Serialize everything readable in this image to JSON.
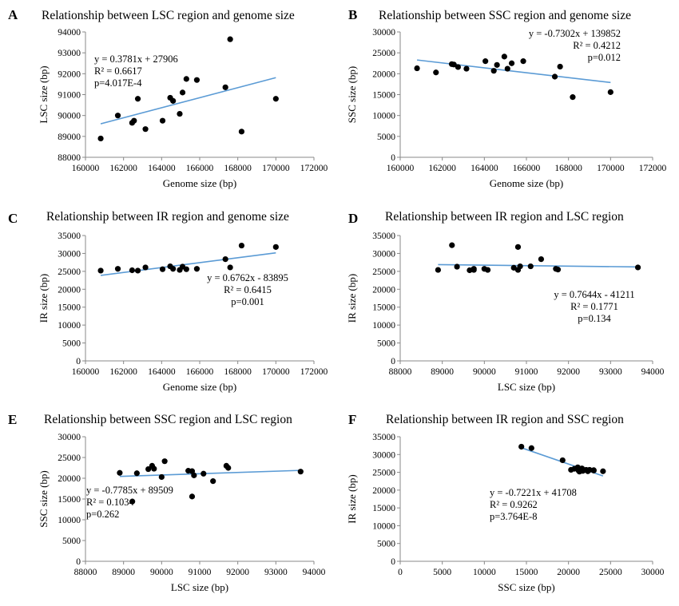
{
  "chart_data": [
    {
      "panel": "A",
      "type": "scatter",
      "title": "Relationship between LSC region and genome size",
      "xlabel": "Genome size (bp)",
      "ylabel": "LSC size (bp)",
      "xlim": [
        160000,
        172000
      ],
      "xticks": [
        160000,
        162000,
        164000,
        166000,
        168000,
        170000,
        172000
      ],
      "ylim": [
        88000,
        94000
      ],
      "yticks": [
        88000,
        89000,
        90000,
        91000,
        92000,
        93000,
        94000
      ],
      "points": [
        [
          160800,
          88900
        ],
        [
          161700,
          90000
        ],
        [
          162450,
          89650
        ],
        [
          162550,
          89750
        ],
        [
          162750,
          90800
        ],
        [
          163150,
          89350
        ],
        [
          164050,
          89750
        ],
        [
          164450,
          90850
        ],
        [
          164600,
          90700
        ],
        [
          164950,
          90080
        ],
        [
          165100,
          91100
        ],
        [
          165300,
          91750
        ],
        [
          165850,
          91700
        ],
        [
          167350,
          91350
        ],
        [
          167600,
          93650
        ],
        [
          168200,
          89230
        ],
        [
          170000,
          90800
        ]
      ],
      "trendline": {
        "x": [
          160800,
          170000
        ]
      },
      "annotation": [
        "y = 0.3781x + 27906",
        "R² = 0.6617",
        "p=4.017E-4"
      ],
      "grid": false,
      "legend": "none"
    },
    {
      "panel": "B",
      "type": "scatter",
      "title": "Relationship between SSC region and genome size",
      "xlabel": "Genome size (bp)",
      "ylabel": "SSC size (bp)",
      "xlim": [
        160000,
        172000
      ],
      "xticks": [
        160000,
        162000,
        164000,
        166000,
        168000,
        170000,
        172000
      ],
      "ylim": [
        0,
        30000
      ],
      "yticks": [
        0,
        5000,
        10000,
        15000,
        20000,
        25000,
        30000
      ],
      "points": [
        [
          160800,
          21300
        ],
        [
          161700,
          20300
        ],
        [
          162450,
          22300
        ],
        [
          162550,
          22200
        ],
        [
          162750,
          21600
        ],
        [
          163150,
          21200
        ],
        [
          164050,
          23000
        ],
        [
          164450,
          20700
        ],
        [
          164600,
          22100
        ],
        [
          164950,
          24100
        ],
        [
          165100,
          21200
        ],
        [
          165300,
          22500
        ],
        [
          165850,
          23000
        ],
        [
          167350,
          19300
        ],
        [
          167600,
          21700
        ],
        [
          168200,
          14400
        ],
        [
          170000,
          15600
        ]
      ],
      "trendline": {
        "x": [
          160800,
          170000
        ]
      },
      "annotation": [
        "y = -0.7302x + 139852",
        "R² = 0.4212",
        "p=0.012"
      ],
      "grid": false,
      "legend": "none"
    },
    {
      "panel": "C",
      "type": "scatter",
      "title": "Relationship between IR region and genome size",
      "xlabel": "Genome size (bp)",
      "ylabel": "IR size (bp)",
      "xlim": [
        160000,
        172000
      ],
      "xticks": [
        160000,
        162000,
        164000,
        166000,
        168000,
        170000,
        172000
      ],
      "ylim": [
        0,
        35000
      ],
      "yticks": [
        0,
        5000,
        10000,
        15000,
        20000,
        25000,
        30000,
        35000
      ],
      "points": [
        [
          160800,
          25200
        ],
        [
          161700,
          25700
        ],
        [
          162450,
          25300
        ],
        [
          162750,
          25200
        ],
        [
          163150,
          26100
        ],
        [
          164050,
          25600
        ],
        [
          164450,
          26400
        ],
        [
          164600,
          25700
        ],
        [
          164950,
          25400
        ],
        [
          165100,
          26300
        ],
        [
          165300,
          25600
        ],
        [
          165850,
          25700
        ],
        [
          167350,
          28400
        ],
        [
          167600,
          26100
        ],
        [
          168200,
          32200
        ],
        [
          170000,
          31800
        ]
      ],
      "trendline": {
        "x": [
          160800,
          170000
        ]
      },
      "annotation": [
        "y = 0.6762x - 83895",
        "R² = 0.6415",
        "p=0.001"
      ],
      "grid": false,
      "legend": "none"
    },
    {
      "panel": "D",
      "type": "scatter",
      "title": "Relationship between IR region and LSC region",
      "xlabel": "LSC size (bp)",
      "ylabel": "IR size (bp)",
      "xlim": [
        88000,
        94000
      ],
      "xticks": [
        88000,
        89000,
        90000,
        91000,
        92000,
        93000,
        94000
      ],
      "ylim": [
        0,
        35000
      ],
      "yticks": [
        0,
        5000,
        10000,
        15000,
        20000,
        25000,
        30000,
        35000
      ],
      "points": [
        [
          88900,
          25400
        ],
        [
          89230,
          32300
        ],
        [
          89350,
          26300
        ],
        [
          89650,
          25300
        ],
        [
          89750,
          25700
        ],
        [
          89750,
          25400
        ],
        [
          90000,
          25700
        ],
        [
          90080,
          25400
        ],
        [
          90700,
          26000
        ],
        [
          90800,
          31800
        ],
        [
          90800,
          25400
        ],
        [
          90850,
          26400
        ],
        [
          91100,
          26400
        ],
        [
          91350,
          28400
        ],
        [
          91700,
          25700
        ],
        [
          91750,
          25500
        ],
        [
          93650,
          26100
        ]
      ],
      "trendline": {
        "x": [
          88900,
          93650
        ]
      },
      "annotation": [
        "y = 0.7644x - 41211",
        "R² = 0.1771",
        "p=0.134"
      ],
      "grid": false,
      "legend": "none"
    },
    {
      "panel": "E",
      "type": "scatter",
      "title": "Relationship between SSC region and LSC region",
      "xlabel": "LSC size (bp)",
      "ylabel": "SSC size (bp)",
      "xlim": [
        88000,
        94000
      ],
      "xticks": [
        88000,
        89000,
        90000,
        91000,
        92000,
        93000,
        94000
      ],
      "ylim": [
        0,
        30000
      ],
      "yticks": [
        0,
        5000,
        10000,
        15000,
        20000,
        25000,
        30000
      ],
      "points": [
        [
          88900,
          21300
        ],
        [
          89230,
          14400
        ],
        [
          89350,
          21200
        ],
        [
          89650,
          22200
        ],
        [
          89750,
          23000
        ],
        [
          89800,
          22300
        ],
        [
          90000,
          20300
        ],
        [
          90080,
          24100
        ],
        [
          90700,
          21800
        ],
        [
          90800,
          21700
        ],
        [
          90800,
          15600
        ],
        [
          90850,
          20700
        ],
        [
          91100,
          21100
        ],
        [
          91350,
          19300
        ],
        [
          91700,
          23000
        ],
        [
          91750,
          22500
        ],
        [
          93650,
          21600
        ]
      ],
      "trendline": {
        "x": [
          88900,
          93650
        ]
      },
      "annotation": [
        "y = -0.7785x + 89509",
        "R² = 0.1034",
        "p=0.262"
      ],
      "grid": false,
      "legend": "none"
    },
    {
      "panel": "F",
      "type": "scatter",
      "title": "Relationship between IR region and SSC region",
      "xlabel": "SSC size (bp)",
      "ylabel": "IR size (bp)",
      "xlim": [
        0,
        30000
      ],
      "xticks": [
        0,
        5000,
        10000,
        15000,
        20000,
        25000,
        30000
      ],
      "ylim": [
        0,
        35000
      ],
      "yticks": [
        0,
        5000,
        10000,
        15000,
        20000,
        25000,
        30000,
        35000
      ],
      "points": [
        [
          14400,
          32200
        ],
        [
          15600,
          31800
        ],
        [
          19300,
          28400
        ],
        [
          20300,
          25700
        ],
        [
          20700,
          26000
        ],
        [
          21100,
          26400
        ],
        [
          21200,
          25500
        ],
        [
          21300,
          25200
        ],
        [
          21600,
          26100
        ],
        [
          21700,
          25400
        ],
        [
          21800,
          25600
        ],
        [
          22100,
          25700
        ],
        [
          22300,
          25300
        ],
        [
          22500,
          25700
        ],
        [
          23000,
          25500
        ],
        [
          23000,
          25600
        ],
        [
          24100,
          25300
        ]
      ],
      "trendline": {
        "x": [
          14400,
          24100
        ]
      },
      "annotation": [
        "y = -0.7221x + 41708",
        "R² = 0.9262",
        "p=3.764E-8"
      ],
      "grid": false,
      "legend": "none"
    }
  ]
}
